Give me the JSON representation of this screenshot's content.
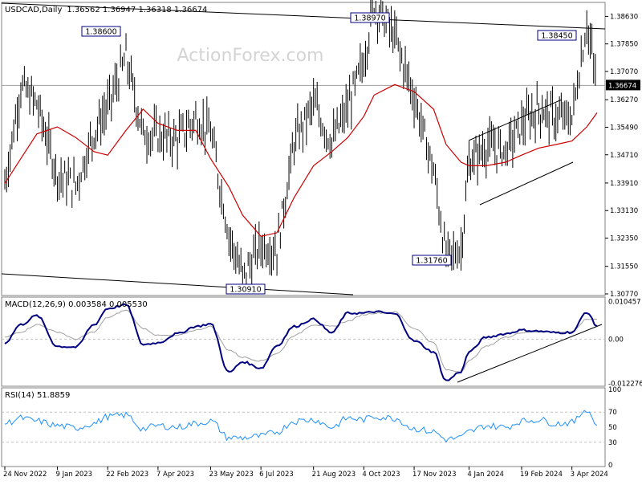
{
  "header": {
    "symbol": "USDCAD,Daily",
    "ohlc": "1.36562 1.36947 1.36318 1.36674"
  },
  "watermark": "ActionForex.com",
  "colors": {
    "price_bar": "#000000",
    "moving_average": "#cc0000",
    "macd_line": "#000080",
    "macd_signal": "#a0a0a0",
    "rsi_line": "#1e90ff",
    "channel": "#000000",
    "current_price_box": "#000000"
  },
  "chart_data": [
    {
      "type": "line",
      "title": "USDCAD,Daily",
      "series": [
        {
          "values_description": "OHLC bars",
          "x": [
            "2022-11-24",
            "2022-12-08",
            "2022-12-22",
            "2023-01-09",
            "2023-01-25",
            "2023-02-10",
            "2023-02-22",
            "2023-03-10",
            "2023-03-25",
            "2023-04-07",
            "2023-04-24",
            "2023-05-10",
            "2023-05-23",
            "2023-06-08",
            "2023-06-20",
            "2023-07-06",
            "2023-07-20",
            "2023-08-04",
            "2023-08-21",
            "2023-09-06",
            "2023-09-20",
            "2023-10-04",
            "2023-10-13",
            "2023-10-31",
            "2023-11-17",
            "2023-12-04",
            "2023-12-15",
            "2023-12-28",
            "2024-01-04",
            "2024-01-19",
            "2024-02-05",
            "2024-02-19",
            "2024-03-05",
            "2024-03-20",
            "2024-04-03",
            "2024-04-16",
            "2024-04-25"
          ],
          "values": [
            1.339,
            1.3665,
            1.3615,
            1.3415,
            1.3383,
            1.3535,
            1.3605,
            1.3745,
            1.353,
            1.3525,
            1.3515,
            1.3575,
            1.3535,
            1.3245,
            1.3125,
            1.3215,
            1.3205,
            1.3505,
            1.3615,
            1.3505,
            1.3605,
            1.3738,
            1.3897,
            1.3805,
            1.3635,
            1.3425,
            1.318,
            1.3205,
            1.3445,
            1.3495,
            1.3485,
            1.3555,
            1.3602,
            1.3575,
            1.3575,
            1.3845,
            1.3667
          ]
        },
        {
          "values_description": "Moving average",
          "values": [
            1.339,
            1.346,
            1.353,
            1.355,
            1.352,
            1.348,
            1.347,
            1.354,
            1.36,
            1.356,
            1.354,
            1.354,
            1.346,
            1.338,
            1.33,
            1.324,
            1.325,
            1.335,
            1.344,
            1.348,
            1.352,
            1.358,
            1.364,
            1.367,
            1.365,
            1.36,
            1.35,
            1.345,
            1.344,
            1.344,
            1.345,
            1.347,
            1.349,
            1.35,
            1.351,
            1.355,
            1.359
          ]
        }
      ],
      "annotations": [
        "1.38600",
        "1.38970",
        "1.38450",
        "1.31760",
        "1.30910"
      ],
      "yticks": [
        "1.38630",
        "1.37850",
        "1.37070",
        "1.36270",
        "1.35490",
        "1.34710",
        "1.33910",
        "1.33130",
        "1.32350",
        "1.31550",
        "1.30770"
      ],
      "current_price": "1.36674",
      "ylim": [
        1.3077,
        1.3898
      ]
    },
    {
      "type": "line",
      "title": "MACD(12,26,9) 0.003584 0.005530",
      "series": [
        {
          "name": "MACD",
          "values": [
            -0.001,
            0.004,
            0.0065,
            -0.002,
            -0.0022,
            0.004,
            0.0085,
            0.0095,
            -0.0015,
            -0.001,
            0.0015,
            0.0035,
            0.0042,
            -0.0092,
            -0.0063,
            -0.008,
            -0.0018,
            0.0035,
            0.0055,
            0.0018,
            0.0072,
            0.0072,
            0.0076,
            0.007,
            -0.0005,
            -0.0035,
            -0.0115,
            -0.009,
            -0.0035,
            0.0005,
            0.0015,
            0.0025,
            0.0022,
            0.0018,
            0.0019,
            0.0075,
            0.0036
          ]
        },
        {
          "name": "Signal",
          "values": [
            0.0005,
            0.002,
            0.004,
            0.002,
            0,
            0.002,
            0.006,
            0.008,
            0.003,
            0.001,
            0.001,
            0.0025,
            0.0035,
            -0.003,
            -0.005,
            -0.006,
            -0.004,
            0.001,
            0.004,
            0.0035,
            0.005,
            0.0068,
            0.0072,
            0.0075,
            0.003,
            -0.001,
            -0.0085,
            -0.009,
            -0.006,
            -0.002,
            0.0005,
            0.0018,
            0.0021,
            0.002,
            0.002,
            0.0055,
            0.0055
          ]
        }
      ],
      "yticks": [
        "0.010457",
        "0.00",
        "-0.012276"
      ],
      "ylim": [
        -0.0126,
        0.0112
      ]
    },
    {
      "type": "line",
      "title": "RSI(14) 51.8859",
      "series": [
        {
          "name": "RSI",
          "values": [
            55,
            62,
            58,
            52,
            49,
            55,
            64,
            66,
            48,
            52,
            50,
            55,
            58,
            36,
            36,
            38,
            44,
            58,
            60,
            50,
            62,
            60,
            64,
            62,
            48,
            44,
            34,
            36,
            44,
            52,
            50,
            58,
            60,
            55,
            56,
            74,
            52
          ]
        }
      ],
      "yticks": [
        "100",
        "70",
        "50",
        "30",
        "0"
      ],
      "ylim": [
        0,
        100
      ]
    }
  ],
  "x_axis": {
    "labels": [
      "24 Nov 2022",
      "9 Jan 2023",
      "22 Feb 2023",
      "7 Apr 2023",
      "23 May 2023",
      "6 Jul 2023",
      "21 Aug 2023",
      "4 Oct 2023",
      "17 Nov 2023",
      "4 Jan 2024",
      "19 Feb 2024",
      "3 Apr 2024"
    ]
  }
}
